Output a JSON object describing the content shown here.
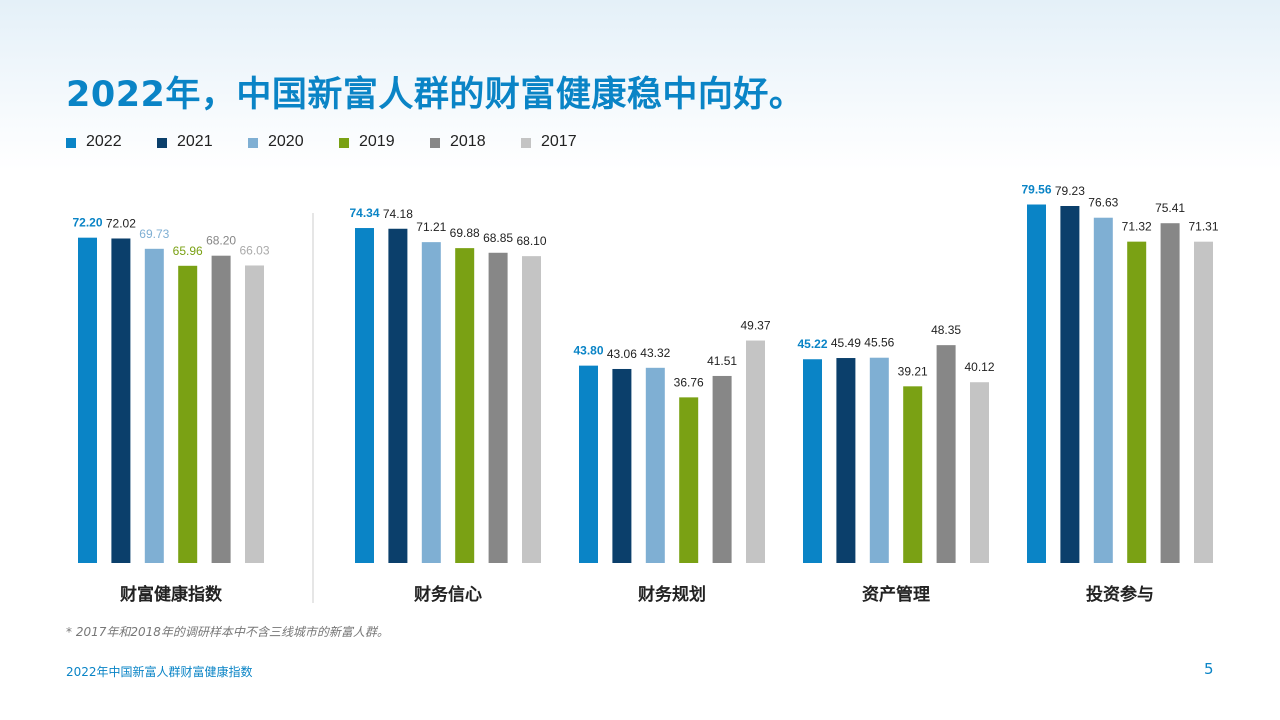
{
  "page": {
    "title": "2022年，中国新富人群的财富健康稳中向好。",
    "footnote": "* 2017年和2018年的调研样本中不含三线城市的新富人群。",
    "footer_text": "2022年中国新富人群财富健康指数",
    "page_number": "5"
  },
  "colors": {
    "2022": "#0a84c6",
    "2021": "#0b3f6b",
    "2020": "#7fafd3",
    "2019": "#7aa114",
    "2018": "#878787",
    "2017": "#c4c4c4"
  },
  "label_colors": {
    "2022": "#0a84c6",
    "2021": "#222222",
    "2020": "#7fafd3",
    "2019": "#7aa114",
    "2018": "#878787",
    "2017": "#aaaaaa"
  },
  "chart_data": {
    "type": "bar",
    "title": "2022年，中国新富人群的财富健康稳中向好。",
    "xlabel": "",
    "ylabel": "",
    "ylim": [
      0,
      85
    ],
    "grid": false,
    "legend_position": "top-left",
    "categories": [
      "财富健康指数",
      "财务信心",
      "财务规划",
      "资产管理",
      "投资参与"
    ],
    "series": [
      {
        "name": "2022",
        "values": [
          72.2,
          74.34,
          43.8,
          45.22,
          79.56
        ]
      },
      {
        "name": "2021",
        "values": [
          72.02,
          74.18,
          43.06,
          45.49,
          79.23
        ]
      },
      {
        "name": "2020",
        "values": [
          69.73,
          71.21,
          43.32,
          45.56,
          76.63
        ]
      },
      {
        "name": "2019",
        "values": [
          65.96,
          69.88,
          36.76,
          39.21,
          71.32
        ]
      },
      {
        "name": "2018",
        "values": [
          68.2,
          68.85,
          41.51,
          48.35,
          75.41
        ]
      },
      {
        "name": "2017",
        "values": [
          66.03,
          68.1,
          49.37,
          40.12,
          71.31
        ]
      }
    ],
    "value_labels": [
      [
        "72.20",
        "74.34",
        "43.80",
        "45.22",
        "79.56"
      ],
      [
        "72.02",
        "74.18",
        "43.06",
        "45.49",
        "79.23"
      ],
      [
        "69.73",
        "71.21",
        "43.32",
        "45.56",
        "76.63"
      ],
      [
        "65.96",
        "69.88",
        "36.76",
        "39.21",
        "71.32"
      ],
      [
        "68.20",
        "68.85",
        "41.51",
        "48.35",
        "75.41"
      ],
      [
        "66.03",
        "68.10",
        "49.37",
        "40.12",
        "71.31"
      ]
    ],
    "label_colored_categories": [
      0
    ]
  }
}
